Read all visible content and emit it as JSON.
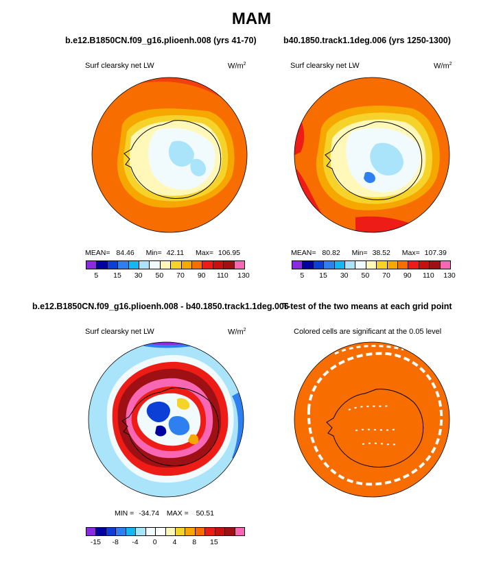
{
  "page": {
    "title": "MAM"
  },
  "panels": [
    {
      "id": "top-left",
      "header": "b.e12.B1850CN.f09_g16.plioenh.008 (yrs 41-70)",
      "left_label": "Surf clearsky net LW",
      "units_base": "W/m",
      "units_exp": "2",
      "stats": {
        "mean_label": "MEAN=",
        "mean": "84.46",
        "min_label": "Min=",
        "min": "42.11",
        "max_label": "Max=",
        "max": "106.95"
      }
    },
    {
      "id": "top-right",
      "header": "b40.1850.track1.1deg.006 (yrs 1250-1300)",
      "left_label": "Surf clearsky net LW",
      "units_base": "W/m",
      "units_exp": "2",
      "stats": {
        "mean_label": "MEAN=",
        "mean": "80.82",
        "min_label": "Min=",
        "min": "38.52",
        "max_label": "Max=",
        "max": "107.39"
      }
    },
    {
      "id": "bottom-left",
      "header": "b.e12.B1850CN.f09_g16.plioenh.008 - b40.1850.track1.1deg.006",
      "left_label": "Surf clearsky net LW",
      "units_base": "W/m",
      "units_exp": "2",
      "stats": {
        "min_label": "MIN =",
        "min": "-34.74",
        "max_label": "MAX =",
        "max": "50.51"
      }
    },
    {
      "id": "bottom-right",
      "header": "T-test of the two means at each grid point",
      "left_label": "Colored cells are significant at the 0.05 level"
    }
  ],
  "colors": {
    "abs_scale": [
      "#8a2be2",
      "#0000a0",
      "#0b3fd6",
      "#2e7ff0",
      "#14b7f0",
      "#a9e4fa",
      "#f1fbfd",
      "#fff8b8",
      "#f5d32a",
      "#f6a800",
      "#f76d00",
      "#ed1c17",
      "#c81010",
      "#9f1014",
      "#f767b3"
    ],
    "diff_scale": [
      "#8a2be2",
      "#0000a0",
      "#0b3fd6",
      "#2e7ff0",
      "#14b7f0",
      "#a9e4fa",
      "#f1fbfd",
      "#ffffff",
      "#fff8b8",
      "#f5d32a",
      "#f6a800",
      "#f76d00",
      "#ed1c17",
      "#c81010",
      "#9f1014",
      "#f767b3"
    ],
    "ttest_fill": "#f76d00",
    "coast": "#000000"
  },
  "chart_data": [
    {
      "type": "heatmap",
      "projection": "south-polar-stereographic",
      "title": "b.e12.B1850CN.f09_g16.plioenh.008 (yrs 41-70)",
      "variable": "Surf clearsky net LW",
      "units": "W/m^2",
      "colorbar_ticks": [
        "5",
        "15",
        "30",
        "50",
        "70",
        "90",
        "110",
        "130"
      ],
      "mean": 84.46,
      "min": 42.11,
      "max": 106.95
    },
    {
      "type": "heatmap",
      "projection": "south-polar-stereographic",
      "title": "b40.1850.track1.1deg.006 (yrs 1250-1300)",
      "variable": "Surf clearsky net LW",
      "units": "W/m^2",
      "colorbar_ticks": [
        "5",
        "15",
        "30",
        "50",
        "70",
        "90",
        "110",
        "130"
      ],
      "mean": 80.82,
      "min": 38.52,
      "max": 107.39
    },
    {
      "type": "heatmap",
      "projection": "south-polar-stereographic",
      "title": "b.e12.B1850CN.f09_g16.plioenh.008 - b40.1850.track1.1deg.006",
      "variable": "Surf clearsky net LW",
      "units": "W/m^2",
      "colorbar_ticks": [
        "-15",
        "-8",
        "-4",
        "0",
        "4",
        "8",
        "15"
      ],
      "min": -34.74,
      "max": 50.51
    },
    {
      "type": "heatmap",
      "projection": "south-polar-stereographic",
      "title": "T-test of the two means at each grid point",
      "note": "Colored cells are significant at the 0.05 level"
    }
  ]
}
